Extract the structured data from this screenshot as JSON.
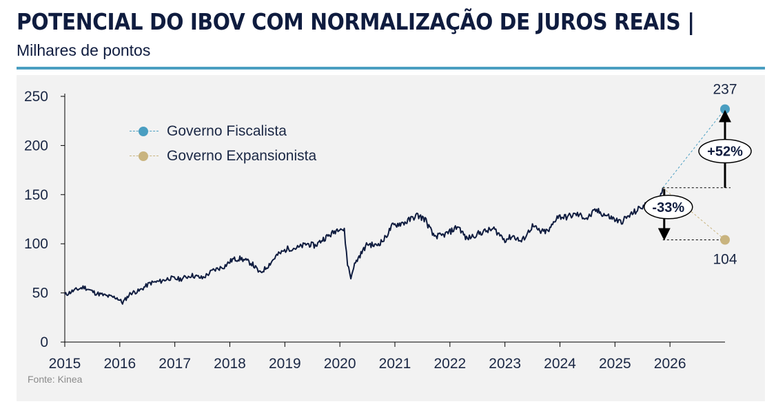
{
  "header": {
    "title": "POTENCIAL DO IBOV COM NORMALIZAÇÃO DE JUROS REAIS |",
    "subtitle": "Milhares de pontos"
  },
  "footer": {
    "source": "Fonte: Kinea"
  },
  "colors": {
    "line": "#0f1c3f",
    "fiscalista": "#4a9ec1",
    "expansionista": "#c9b47f",
    "rule": "#4a9ec1",
    "panel": "#f2f2f2"
  },
  "chart_data": {
    "type": "line",
    "title": "POTENCIAL DO IBOV COM NORMALIZAÇÃO DE JUROS REAIS |",
    "subtitle": "Milhares de pontos",
    "xlabel": "",
    "ylabel": "Milhares de pontos",
    "xlim": [
      2015,
      2027
    ],
    "ylim": [
      0,
      250
    ],
    "x_ticks": [
      "2015",
      "2016",
      "2017",
      "2018",
      "2019",
      "2020",
      "2021",
      "2022",
      "2023",
      "2024",
      "2025",
      "2026"
    ],
    "y_ticks": [
      "0",
      "50",
      "100",
      "150",
      "200",
      "250"
    ],
    "grid": false,
    "series": [
      {
        "name": "Ibovespa",
        "x": [
          2015.0,
          2015.15,
          2015.35,
          2015.55,
          2015.75,
          2015.95,
          2016.05,
          2016.2,
          2016.35,
          2016.55,
          2016.75,
          2016.9,
          2017.1,
          2017.3,
          2017.5,
          2017.7,
          2017.9,
          2018.05,
          2018.2,
          2018.4,
          2018.55,
          2018.7,
          2018.85,
          2019.05,
          2019.25,
          2019.4,
          2019.55,
          2019.7,
          2019.85,
          2020.0,
          2020.08,
          2020.14,
          2020.2,
          2020.25,
          2020.35,
          2020.5,
          2020.65,
          2020.8,
          2020.95,
          2021.05,
          2021.2,
          2021.4,
          2021.55,
          2021.7,
          2021.85,
          2022.0,
          2022.15,
          2022.3,
          2022.5,
          2022.6,
          2022.8,
          2023.0,
          2023.15,
          2023.3,
          2023.5,
          2023.65,
          2023.8,
          2023.95,
          2024.1,
          2024.3,
          2024.5,
          2024.65,
          2024.8,
          2024.95,
          2025.1,
          2025.3,
          2025.5,
          2025.65,
          2025.8,
          2025.87
        ],
        "values": [
          48,
          52,
          56,
          50,
          47,
          45,
          40,
          50,
          52,
          60,
          62,
          65,
          64,
          68,
          65,
          73,
          77,
          84,
          85,
          80,
          70,
          78,
          88,
          95,
          96,
          100,
          98,
          105,
          110,
          117,
          113,
          80,
          65,
          77,
          87,
          100,
          98,
          104,
          118,
          120,
          122,
          129,
          125,
          108,
          108,
          112,
          118,
          105,
          110,
          112,
          115,
          104,
          108,
          102,
          118,
          112,
          113,
          128,
          127,
          130,
          126,
          134,
          130,
          126,
          122,
          130,
          138,
          140,
          145,
          157
        ]
      },
      {
        "name": "Governo Fiscalista",
        "x": [
          2025.87,
          2027
        ],
        "values": [
          157,
          237
        ],
        "style": "dashed"
      },
      {
        "name": "Governo Expansionista",
        "x": [
          2025.87,
          2027
        ],
        "values": [
          157,
          104
        ],
        "style": "dashed"
      }
    ],
    "endpoints": [
      {
        "name": "Governo Fiscalista",
        "x": 2027,
        "value": 237,
        "label": "237"
      },
      {
        "name": "Governo Expansionista",
        "x": 2027,
        "value": 104,
        "label": "104"
      }
    ],
    "annotations": [
      {
        "text": "+52%",
        "direction": "up",
        "from": 157,
        "to": 237
      },
      {
        "text": "-33%",
        "direction": "down",
        "from": 157,
        "to": 104
      }
    ],
    "legend": {
      "placement": "top-left",
      "entries": [
        "Governo Fiscalista",
        "Governo Expansionista"
      ]
    }
  }
}
